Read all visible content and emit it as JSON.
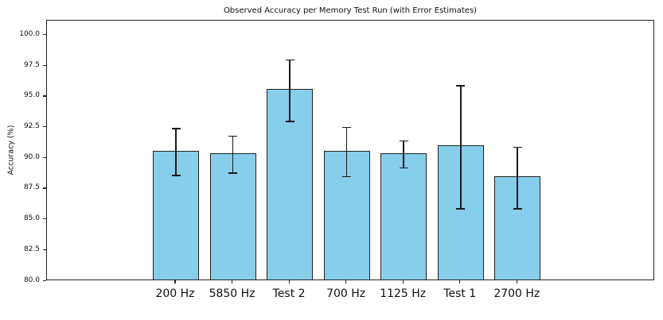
{
  "figure": {
    "background": "#ffffff"
  },
  "chart_data": {
    "type": "bar",
    "title": "Observed Accuracy per Memory Test Run (with Error Estimates)",
    "xlabel": "",
    "ylabel": "Accuracy (%)",
    "categories": [
      "200 Hz",
      "5850 Hz",
      "Test 2",
      "700 Hz",
      "1125 Hz",
      "Test 1",
      "2700 Hz"
    ],
    "values": [
      90.5,
      90.3,
      95.5,
      90.5,
      90.3,
      90.9,
      88.4
    ],
    "errors": [
      1.9,
      1.5,
      2.5,
      2.0,
      1.1,
      5.0,
      2.5
    ],
    "ylim": [
      80.0,
      101.2
    ],
    "yticks": [
      80.0,
      82.5,
      85.0,
      87.5,
      90.0,
      92.5,
      95.0,
      97.5,
      100.0
    ],
    "ytick_labels": [
      "80.0",
      "82.5",
      "85.0",
      "87.5",
      "90.0",
      "92.5",
      "95.0",
      "97.5",
      "100.0"
    ],
    "grid": false,
    "legend": null,
    "bar_color": "#87CEEB",
    "bar_edge_color": "#222222",
    "error_color": "#1a1a1a"
  }
}
